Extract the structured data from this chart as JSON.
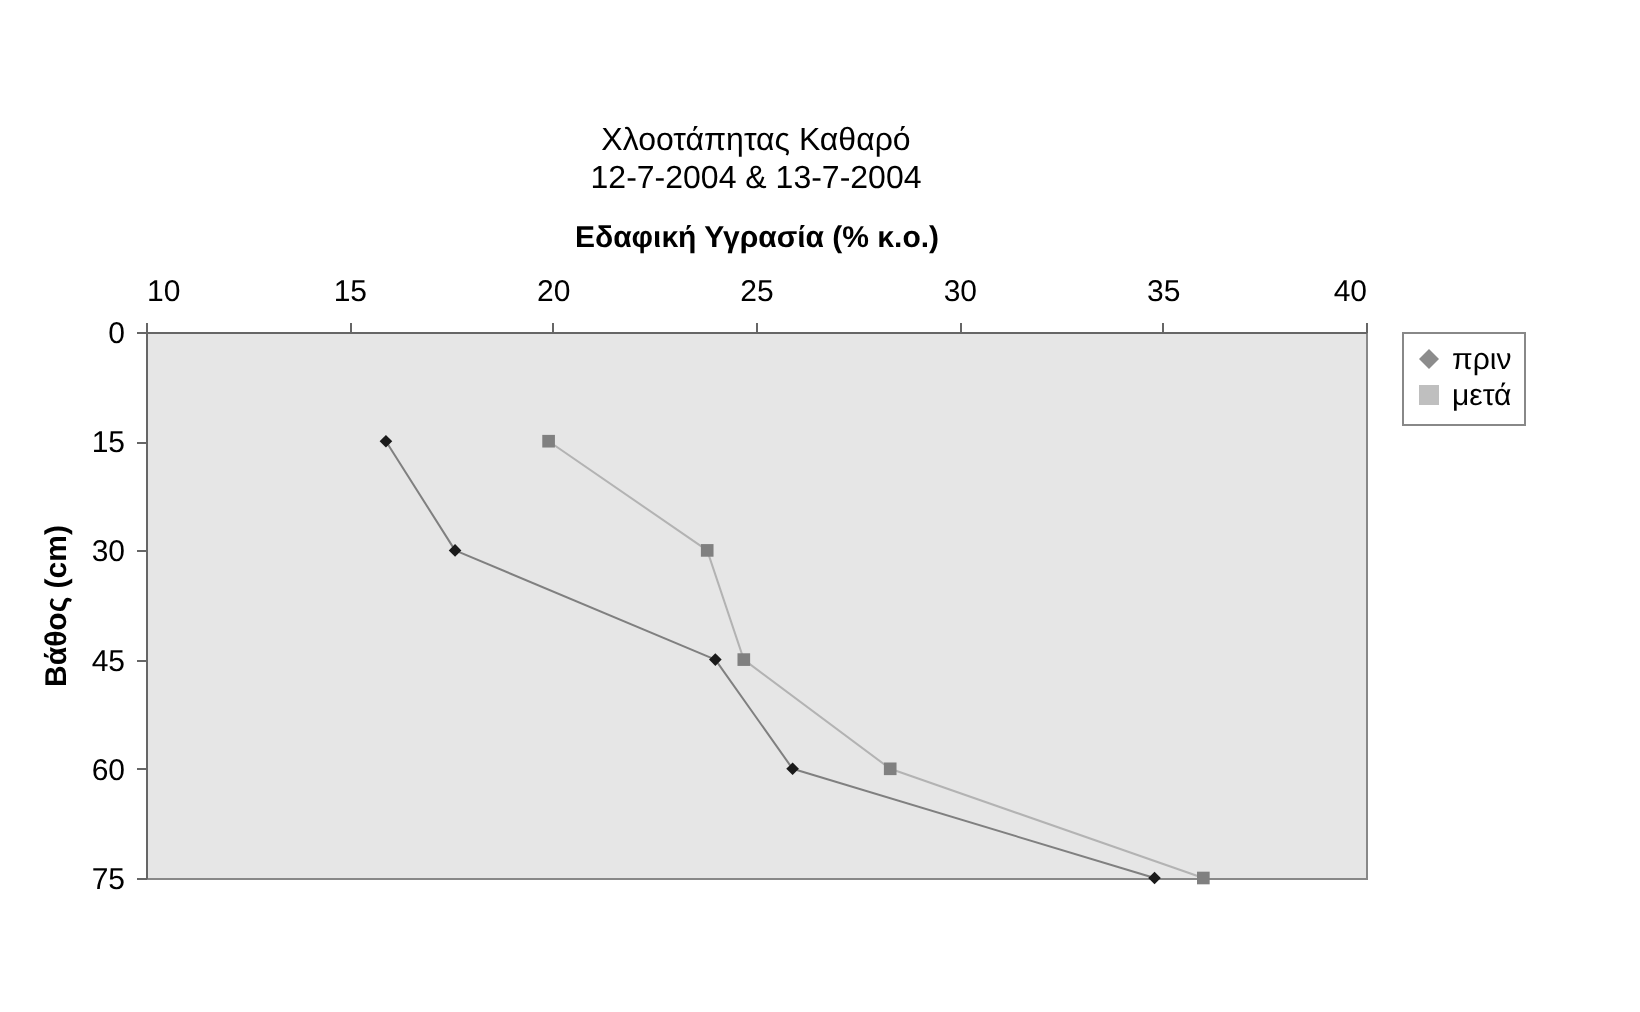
{
  "chart_data": {
    "type": "line",
    "title": "Χλοοτάπητας Καθαρό",
    "subtitle": "12-7-2004 & 13-7-2004",
    "xlabel": "Εδαφική Υγρασία (% κ.ο.)",
    "ylabel": "Βάθος (cm)",
    "xlim": [
      10,
      40
    ],
    "xticks": [
      10,
      15,
      20,
      25,
      30,
      35,
      40
    ],
    "ylim": [
      75,
      0
    ],
    "yticks": [
      0,
      15,
      30,
      45,
      60,
      75
    ],
    "grid": false,
    "legend": "right",
    "line_style": "solid",
    "series": [
      {
        "name": "πριν",
        "color": "#1a1a1a",
        "marker": "diamond",
        "x": [
          15.9,
          17.6,
          24.0,
          25.9,
          34.8
        ],
        "values": [
          15,
          30,
          45,
          60,
          75
        ]
      },
      {
        "name": "μετά",
        "color": "#808080",
        "marker": "square",
        "x": [
          19.9,
          23.8,
          24.7,
          28.3,
          36.0
        ],
        "values": [
          15,
          30,
          45,
          60,
          75
        ]
      }
    ]
  }
}
